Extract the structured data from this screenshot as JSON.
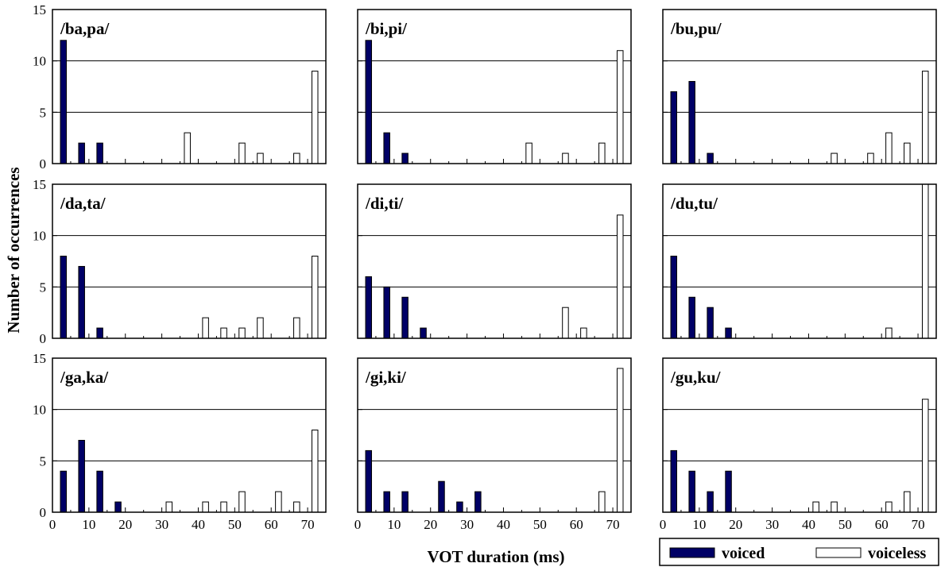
{
  "figure": {
    "ylabel": "Number of occurrences",
    "xlabel": "VOT duration (ms)"
  },
  "legend": {
    "placement": "bottom-right",
    "items": [
      {
        "label": "voiced",
        "color": "#000066"
      },
      {
        "label": "voiceless",
        "color": "#ffffff"
      }
    ]
  },
  "colors": {
    "voiced": "#000066",
    "voiceless": "#ffffff",
    "stroke": "#000000"
  },
  "chart_data": [
    {
      "type": "bar",
      "title": "/ba,pa/",
      "xlim": [
        0,
        75
      ],
      "ylim": [
        0,
        15
      ],
      "yticks": [
        0,
        5,
        10,
        15
      ],
      "xticks": [
        0,
        10,
        20,
        30,
        40,
        50,
        60,
        70
      ],
      "gridlines_y": [
        5,
        10
      ],
      "series": [
        {
          "name": "voiced",
          "x": [
            3,
            8,
            13
          ],
          "values": [
            12,
            2,
            2
          ]
        },
        {
          "name": "voiceless",
          "x": [
            37,
            52,
            57,
            67,
            72
          ],
          "values": [
            3,
            2,
            1,
            1,
            9
          ]
        }
      ]
    },
    {
      "type": "bar",
      "title": "/bi,pi/",
      "xlim": [
        0,
        75
      ],
      "ylim": [
        0,
        15
      ],
      "yticks": [
        0,
        5,
        10,
        15
      ],
      "xticks": [
        0,
        10,
        20,
        30,
        40,
        50,
        60,
        70
      ],
      "gridlines_y": [
        5,
        10
      ],
      "series": [
        {
          "name": "voiced",
          "x": [
            3,
            8,
            13
          ],
          "values": [
            12,
            3,
            1
          ]
        },
        {
          "name": "voiceless",
          "x": [
            47,
            57,
            67,
            72
          ],
          "values": [
            2,
            1,
            2,
            11
          ]
        }
      ]
    },
    {
      "type": "bar",
      "title": "/bu,pu/",
      "xlim": [
        0,
        75
      ],
      "ylim": [
        0,
        15
      ],
      "yticks": [
        0,
        5,
        10,
        15
      ],
      "xticks": [
        0,
        10,
        20,
        30,
        40,
        50,
        60,
        70
      ],
      "gridlines_y": [
        5,
        10
      ],
      "series": [
        {
          "name": "voiced",
          "x": [
            3,
            8,
            13
          ],
          "values": [
            7,
            8,
            1
          ]
        },
        {
          "name": "voiceless",
          "x": [
            47,
            57,
            62,
            67,
            72
          ],
          "values": [
            1,
            1,
            3,
            2,
            9
          ]
        }
      ]
    },
    {
      "type": "bar",
      "title": "/da,ta/",
      "xlim": [
        0,
        75
      ],
      "ylim": [
        0,
        15
      ],
      "yticks": [
        0,
        5,
        10,
        15
      ],
      "xticks": [
        0,
        10,
        20,
        30,
        40,
        50,
        60,
        70
      ],
      "gridlines_y": [
        5,
        10
      ],
      "series": [
        {
          "name": "voiced",
          "x": [
            3,
            8,
            13
          ],
          "values": [
            8,
            7,
            1
          ]
        },
        {
          "name": "voiceless",
          "x": [
            42,
            47,
            52,
            57,
            67,
            72
          ],
          "values": [
            2,
            1,
            1,
            2,
            2,
            8
          ]
        }
      ]
    },
    {
      "type": "bar",
      "title": "/di,ti/",
      "xlim": [
        0,
        75
      ],
      "ylim": [
        0,
        15
      ],
      "yticks": [
        0,
        5,
        10,
        15
      ],
      "xticks": [
        0,
        10,
        20,
        30,
        40,
        50,
        60,
        70
      ],
      "gridlines_y": [
        5,
        10
      ],
      "series": [
        {
          "name": "voiced",
          "x": [
            3,
            8,
            13,
            18
          ],
          "values": [
            6,
            5,
            4,
            1
          ]
        },
        {
          "name": "voiceless",
          "x": [
            57,
            62,
            72
          ],
          "values": [
            3,
            1,
            12
          ]
        }
      ]
    },
    {
      "type": "bar",
      "title": "/du,tu/",
      "xlim": [
        0,
        75
      ],
      "ylim": [
        0,
        15
      ],
      "yticks": [
        0,
        5,
        10,
        15
      ],
      "xticks": [
        0,
        10,
        20,
        30,
        40,
        50,
        60,
        70
      ],
      "gridlines_y": [
        5,
        10
      ],
      "series": [
        {
          "name": "voiced",
          "x": [
            3,
            8,
            13,
            18
          ],
          "values": [
            8,
            4,
            3,
            1
          ]
        },
        {
          "name": "voiceless",
          "x": [
            62,
            72
          ],
          "values": [
            1,
            15
          ]
        }
      ]
    },
    {
      "type": "bar",
      "title": "/ga,ka/",
      "xlim": [
        0,
        75
      ],
      "ylim": [
        0,
        15
      ],
      "yticks": [
        0,
        5,
        10,
        15
      ],
      "xticks": [
        0,
        10,
        20,
        30,
        40,
        50,
        60,
        70
      ],
      "gridlines_y": [
        5,
        10
      ],
      "series": [
        {
          "name": "voiced",
          "x": [
            3,
            8,
            13,
            18
          ],
          "values": [
            4,
            7,
            4,
            1
          ]
        },
        {
          "name": "voiceless",
          "x": [
            32,
            42,
            47,
            52,
            62,
            67,
            72
          ],
          "values": [
            1,
            1,
            1,
            2,
            2,
            1,
            8
          ]
        }
      ]
    },
    {
      "type": "bar",
      "title": "/gi,ki/",
      "xlim": [
        0,
        75
      ],
      "ylim": [
        0,
        15
      ],
      "yticks": [
        0,
        5,
        10,
        15
      ],
      "xticks": [
        0,
        10,
        20,
        30,
        40,
        50,
        60,
        70
      ],
      "gridlines_y": [
        5,
        10
      ],
      "series": [
        {
          "name": "voiced",
          "x": [
            3,
            8,
            13,
            23,
            28,
            33
          ],
          "values": [
            6,
            2,
            2,
            3,
            1,
            2
          ]
        },
        {
          "name": "voiceless",
          "x": [
            67,
            72
          ],
          "values": [
            2,
            14
          ]
        }
      ]
    },
    {
      "type": "bar",
      "title": "/gu,ku/",
      "xlim": [
        0,
        75
      ],
      "ylim": [
        0,
        15
      ],
      "yticks": [
        0,
        5,
        10,
        15
      ],
      "xticks": [
        0,
        10,
        20,
        30,
        40,
        50,
        60,
        70
      ],
      "gridlines_y": [
        5,
        10
      ],
      "series": [
        {
          "name": "voiced",
          "x": [
            3,
            8,
            13,
            18
          ],
          "values": [
            6,
            4,
            2,
            4
          ]
        },
        {
          "name": "voiceless",
          "x": [
            42,
            47,
            62,
            67,
            72
          ],
          "values": [
            1,
            1,
            1,
            2,
            11
          ]
        }
      ]
    }
  ]
}
